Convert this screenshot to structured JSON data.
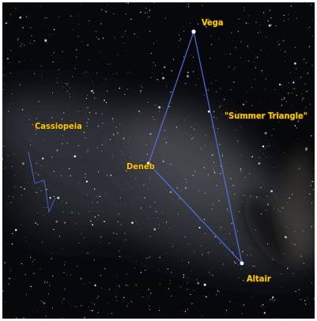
{
  "stars": [
    {
      "name": "Vega"
    },
    {
      "name": "Deneb"
    },
    {
      "name": "Altair"
    }
  ],
  "constellation": "Cassiopeia",
  "asterism": "\"Summer Triangle\""
}
